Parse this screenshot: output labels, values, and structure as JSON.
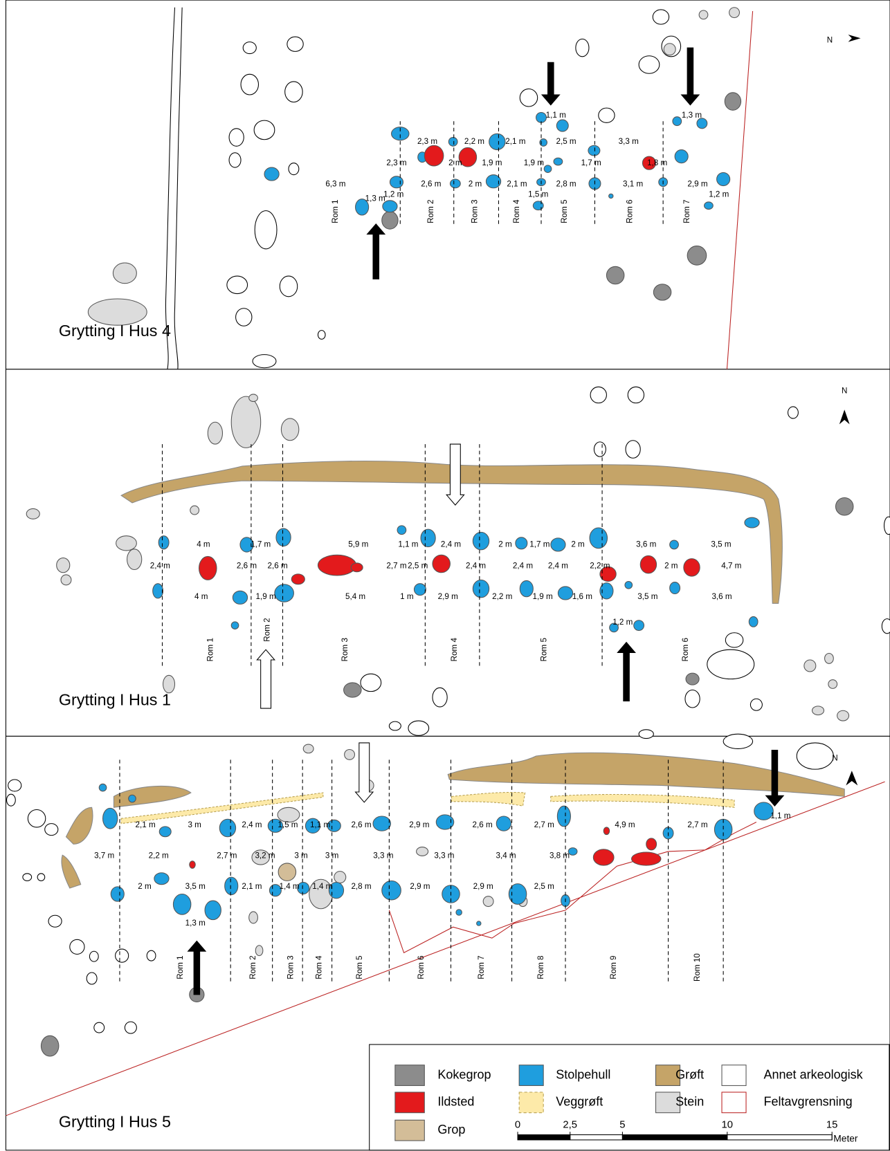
{
  "panels": [
    {
      "title": "Grytting I Hus 4",
      "north": "N",
      "measurements": [
        "1,1 m",
        "1,3 m",
        "2,3 m",
        "2,2 m",
        "2,1 m",
        "2,5 m",
        "3,3 m",
        "2,3 m",
        "2 m",
        "1,9 m",
        "1,9 m",
        "1,7 m",
        "1,8 m",
        "6,3 m",
        "2,6 m",
        "2 m",
        "2,1 m",
        "2,8 m",
        "3,1 m",
        "2,9 m",
        "1,2 m",
        "1,5 m",
        "1,2 m",
        "1,3 m"
      ],
      "rooms": [
        "Rom 1",
        "Rom 2",
        "Rom 3",
        "Rom 4",
        "Rom 5",
        "Rom 6",
        "Rom 7"
      ]
    },
    {
      "title": "Grytting I Hus 1",
      "north": "N",
      "measurements": [
        "4 m",
        "1,7 m",
        "5,9 m",
        "1,1 m",
        "2,4 m",
        "2 m",
        "1,7 m",
        "2 m",
        "3,6 m",
        "3,5 m",
        "2,4 m",
        "2,6 m",
        "2,6 m",
        "2,7 m",
        "2,5 m",
        "2,4 m",
        "2,4 m",
        "2,4 m",
        "2,2 m",
        "2 m",
        "4,7 m",
        "4 m",
        "1,9 m",
        "5,4 m",
        "1 m",
        "2,9 m",
        "2,2 m",
        "1,9 m",
        "1,6 m",
        "3,5 m",
        "3,6 m",
        "1,2 m"
      ],
      "rooms": [
        "Rom 1",
        "Rom 2",
        "Rom 3",
        "Rom 4",
        "Rom 5",
        "Rom 6"
      ]
    },
    {
      "title": "Grytting I Hus 5",
      "north": "N",
      "measurements": [
        "2,1 m",
        "3 m",
        "2,4 m",
        "1,5 m",
        "1,1 m",
        "2,6 m",
        "2,9 m",
        "2,6 m",
        "2,7 m",
        "4,9 m",
        "2,7 m",
        "1,1 m",
        "3,7 m",
        "2,2 m",
        "2,7 m",
        "3,2 m",
        "3 m",
        "3 m",
        "3,3 m",
        "3,3 m",
        "3,4 m",
        "3,8 m",
        "2 m",
        "3,5 m",
        "2,1 m",
        "1,4 m",
        "1,4 m",
        "2,8 m",
        "2,9 m",
        "2,9 m",
        "2,5 m",
        "1,3 m"
      ],
      "rooms": [
        "Rom 1",
        "Rom 2",
        "Rom 3",
        "Rom 4",
        "Rom 5",
        "Rom 6",
        "Rom 7",
        "Rom 8",
        "Rom 9",
        "Rom 10"
      ]
    }
  ],
  "legend": {
    "items": [
      {
        "label": "Kokegrop",
        "color": "#8c8c8c"
      },
      {
        "label": "Ildsted",
        "color": "#e31a1c"
      },
      {
        "label": "Grop",
        "color": "#d3bd98"
      },
      {
        "label": "Stolpehull",
        "color": "#1f9ede"
      },
      {
        "label": "Veggrøft",
        "color": "#fdeaa9"
      },
      {
        "label": "Grøft",
        "color": "#c5a468"
      },
      {
        "label": "Stein",
        "color": "#dcdcdc"
      },
      {
        "label": "Annet arkeologisk",
        "color": "#ffffff"
      },
      {
        "label": "Feltavgrensning",
        "color": "#ffffff"
      }
    ]
  },
  "scale": {
    "ticks": [
      0,
      {
        "value": 2.5,
        "label": "2,5"
      },
      5,
      10,
      15
    ],
    "unit": "Meter"
  }
}
